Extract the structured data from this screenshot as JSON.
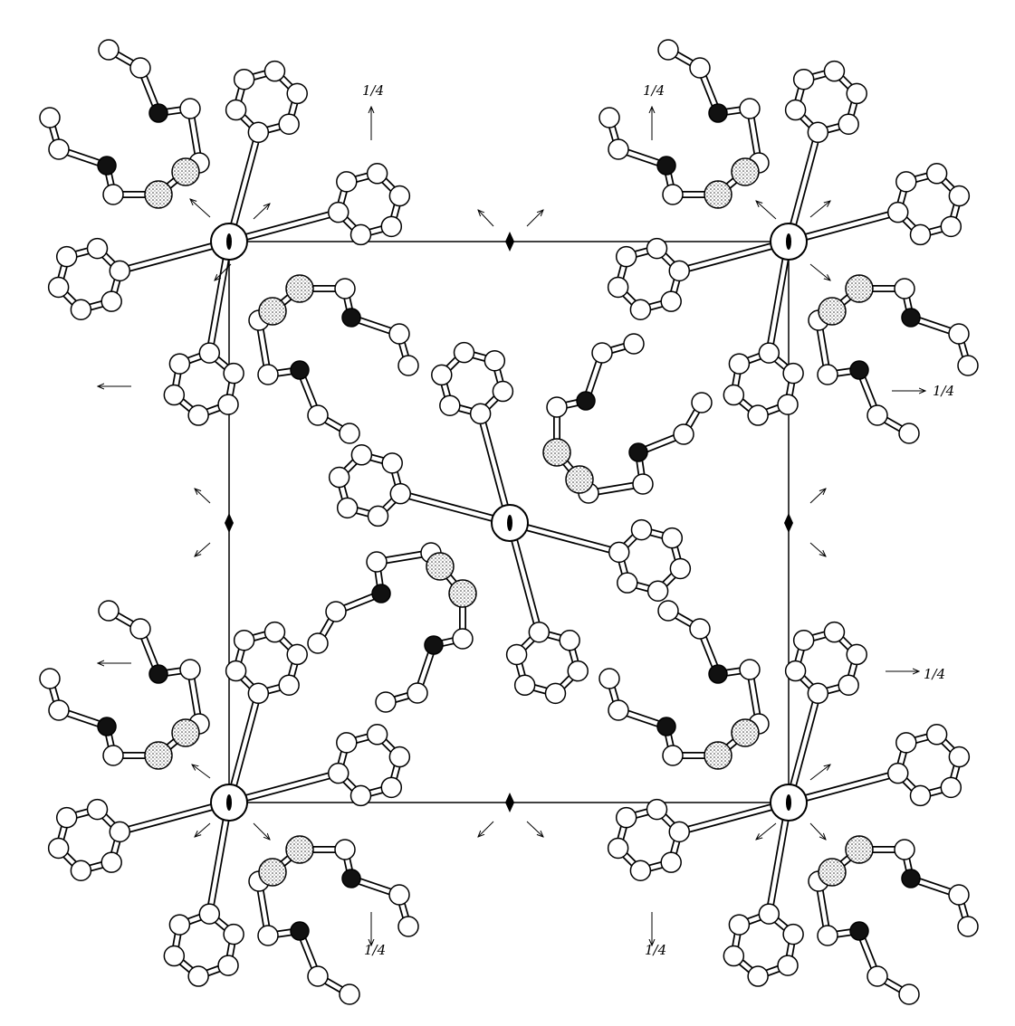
{
  "labels": [
    "1/4",
    "1/4",
    "1/4",
    "1/4",
    "1/4",
    "1/4"
  ]
}
